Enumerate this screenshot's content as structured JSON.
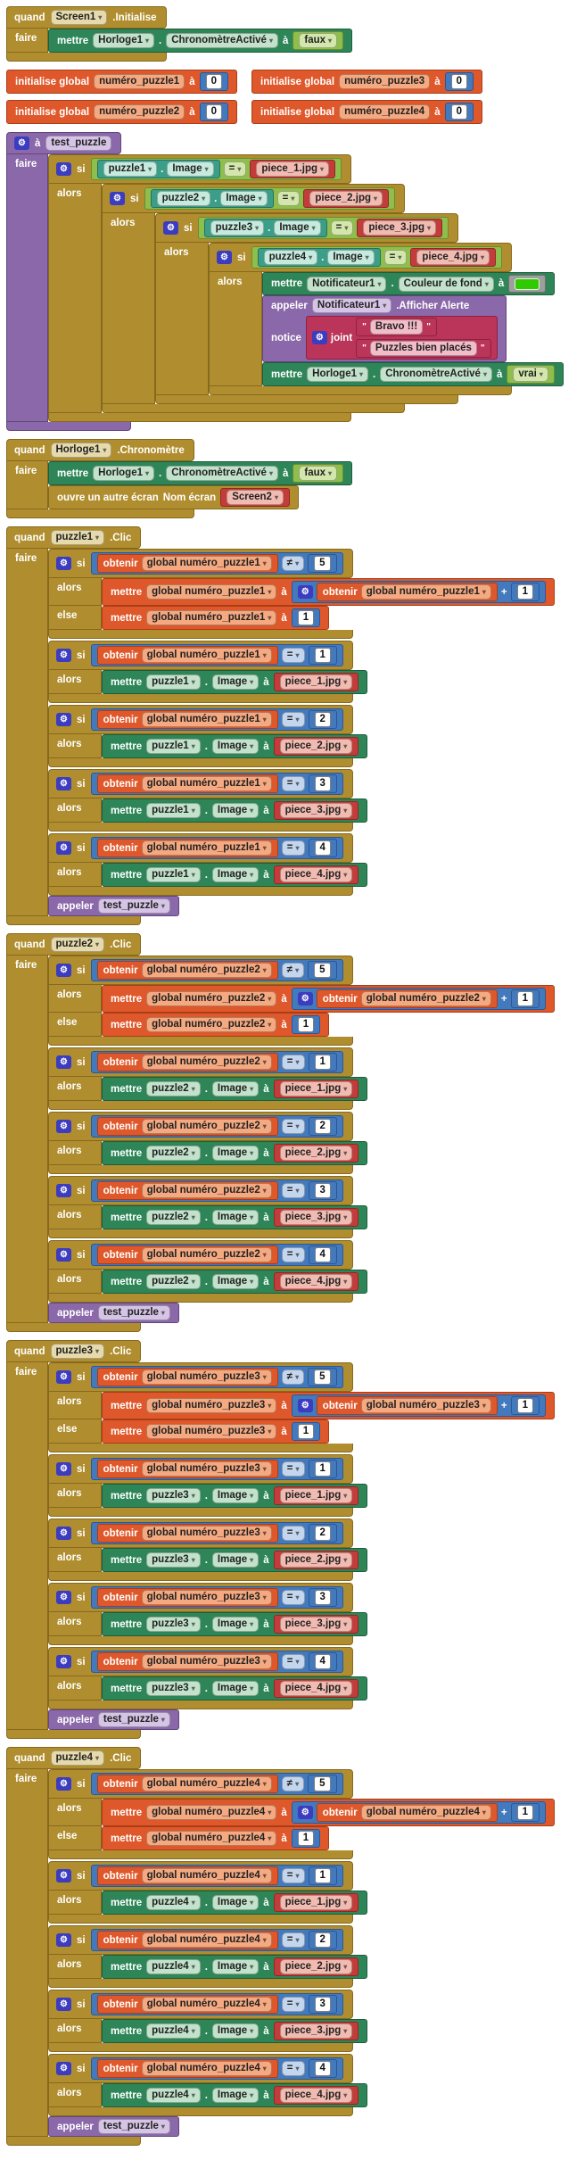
{
  "labels": {
    "quand": "quand",
    "faire": "faire",
    "si": "si",
    "alors": "alors",
    "sinon": "else",
    "mettre": "mettre",
    "a": "à",
    "dot": ".",
    "obtenir": "obtenir",
    "appeler": "appeler",
    "plus": "+",
    "eq": "=",
    "neq": "≠",
    "joint": "joint",
    "notice": "notice"
  },
  "colors": {
    "gold": {
      "bg": "#B08E2F",
      "br": "#87691E",
      "pill": "#E6DAAD"
    },
    "orange": {
      "bg": "#DF582B",
      "br": "#A93E16",
      "pill": "#F5A981"
    },
    "math": {
      "bg": "#4379BD",
      "br": "#2D5792",
      "pill": "#C4D6EE"
    },
    "setter": {
      "bg": "#2E8658",
      "br": "#1E5C3B",
      "pill": "#C2E2CB"
    },
    "getter": {
      "bg": "#3B9E89",
      "br": "#27705F",
      "pill": "#C6EADD"
    },
    "logic": {
      "bg": "#90BE4C",
      "br": "#688C31",
      "pill": "#D3E6AC"
    },
    "crimson": {
      "bg": "#BB3459",
      "br": "#8C2340",
      "pill": "#F2BCC9"
    },
    "red": {
      "bg": "#C33C3C",
      "br": "#92281F",
      "pill": "#F2BBB1"
    },
    "purple": {
      "bg": "#8A68A9",
      "br": "#62477C",
      "pill": "#D5C4E5"
    },
    "gray": {
      "bg": "#9E9E9E",
      "br": "#6F6F6F",
      "pill": "#E0E0E0"
    },
    "swatch": "#2FCB00",
    "gear_bg": "#3C3CC0"
  },
  "screen1_init": {
    "kind": "hat",
    "color": "gold",
    "name": "event-screen1-initialise",
    "header": [
      {
        "t": "lbl",
        "x": "quand"
      },
      {
        "t": "pill",
        "x": "Screen1",
        "arrow": true
      },
      {
        "t": "lbl",
        "x": ".Initialise"
      }
    ],
    "clauses": [
      {
        "label": "faire",
        "children": [
          {
            "kind": "stmt",
            "color": "setter",
            "name": "set-chronometre-active-block",
            "items": [
              {
                "t": "lbl",
                "x": "mettre"
              },
              {
                "t": "pill",
                "x": "Horloge1",
                "arrow": true
              },
              {
                "t": "lbl",
                "x": "."
              },
              {
                "t": "pill",
                "x": "ChronomètreActivé",
                "arrow": true
              },
              {
                "t": "lbl",
                "x": "à"
              },
              {
                "t": "val",
                "color": "logic",
                "name": "logic-false-block",
                "items": [
                  {
                    "t": "pill",
                    "x": "faux",
                    "arrow": true
                  }
                ]
              }
            ]
          }
        ]
      }
    ]
  },
  "init_globals": {
    "keyword": "initialise global",
    "to": "à",
    "zero": "0",
    "names": [
      "numéro_puzzle1",
      "numéro_puzzle3",
      "numéro_puzzle2",
      "numéro_puzzle4"
    ]
  },
  "test_puzzle": {
    "proc_header": {
      "kw": "à",
      "name": "test_puzzle"
    },
    "conditions": [
      {
        "component": "puzzle1",
        "prop": "Image",
        "op": "=",
        "text": "piece_1.jpg"
      },
      {
        "component": "puzzle2",
        "prop": "Image",
        "op": "=",
        "text": "piece_2.jpg"
      },
      {
        "component": "puzzle3",
        "prop": "Image",
        "op": "=",
        "text": "piece_3.jpg"
      },
      {
        "component": "puzzle4",
        "prop": "Image",
        "op": "=",
        "text": "piece_4.jpg"
      }
    ],
    "innermost": {
      "set_color": {
        "mettre": "mettre",
        "component": "Notificateur1",
        "prop": "Couleur de fond",
        "a": "à"
      },
      "call_alert": {
        "appeler": "appeler",
        "component": "Notificateur1",
        "method": ".Afficher Alerte",
        "arg_label": "notice",
        "join_label": "joint",
        "texts": [
          "Bravo !!!",
          "Puzzles bien placés"
        ]
      },
      "set_timer": {
        "mettre": "mettre",
        "component": "Horloge1",
        "prop": "ChronomètreActivé",
        "a": "à",
        "value": "vrai"
      }
    }
  },
  "horloge_timer": {
    "header": {
      "quand": "quand",
      "component": "Horloge1",
      "event": ".Chronomètre"
    },
    "set_false": {
      "mettre": "mettre",
      "component": "Horloge1",
      "prop": "ChronomètreActivé",
      "a": "à",
      "value": "faux"
    },
    "open_screen": {
      "kw": "ouvre un autre écran",
      "arg": "Nom écran",
      "screen": "Screen2"
    }
  },
  "clic_labels": {
    "event": ".Clic",
    "image": "Image",
    "proc": "test_puzzle"
  },
  "clic_sections": [
    {
      "component": "puzzle1",
      "var": "global numéro_puzzle1",
      "limit": "5",
      "one": "1",
      "nums": [
        "1",
        "2",
        "3",
        "4"
      ],
      "pieces": [
        "piece_1.jpg",
        "piece_2.jpg",
        "piece_3.jpg",
        "piece_4.jpg"
      ]
    },
    {
      "component": "puzzle2",
      "var": "global numéro_puzzle2",
      "limit": "5",
      "one": "1",
      "nums": [
        "1",
        "2",
        "3",
        "4"
      ],
      "pieces": [
        "piece_1.jpg",
        "piece_2.jpg",
        "piece_3.jpg",
        "piece_4.jpg"
      ]
    },
    {
      "component": "puzzle3",
      "var": "global numéro_puzzle3",
      "limit": "5",
      "one": "1",
      "nums": [
        "1",
        "2",
        "3",
        "4"
      ],
      "pieces": [
        "piece_1.jpg",
        "piece_2.jpg",
        "piece_3.jpg",
        "piece_4.jpg"
      ]
    },
    {
      "component": "puzzle4",
      "var": "global numéro_puzzle4",
      "limit": "5",
      "one": "1",
      "nums": [
        "1",
        "2",
        "3",
        "4"
      ],
      "pieces": [
        "piece_1.jpg",
        "piece_2.jpg",
        "piece_3.jpg",
        "piece_4.jpg"
      ]
    }
  ]
}
